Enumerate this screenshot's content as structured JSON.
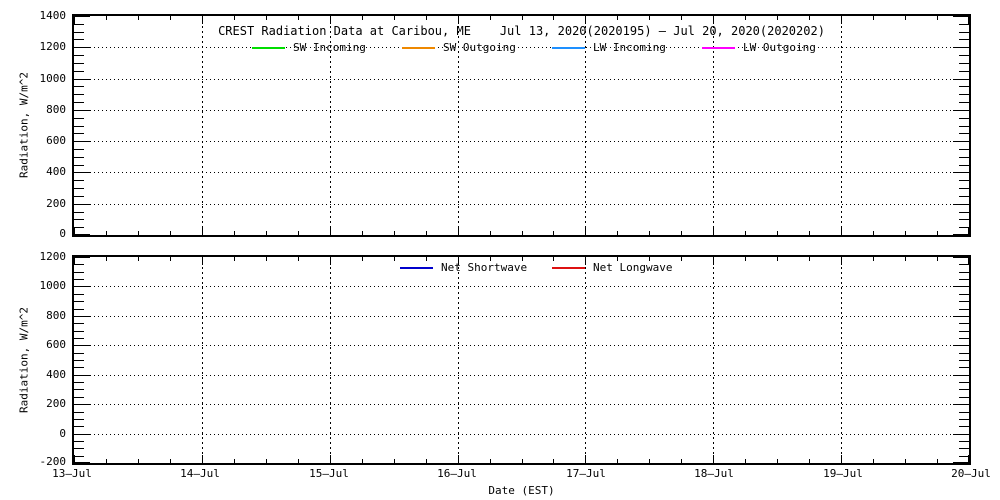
{
  "figure": {
    "background": "#ffffff",
    "foreground": "#000000"
  },
  "chart_data": [
    {
      "type": "line",
      "title": "CREST Radiation Data at Caribou, ME    Jul 13, 2020(2020195) – Jul 20, 2020(2020202)",
      "ylabel": "Radiation, W/m^2",
      "ylim": [
        0,
        1400
      ],
      "ytick_interval": 200,
      "yticks": [
        0,
        200,
        400,
        600,
        800,
        1000,
        1200,
        1400
      ],
      "x_tick_labels": [
        "13–Jul",
        "14–Jul",
        "15–Jul",
        "16–Jul",
        "17–Jul",
        "18–Jul",
        "19–Jul",
        "20–Jul"
      ],
      "grid": "dotted",
      "legend_position": "inside-top",
      "series": [
        {
          "name": "SW Incoming",
          "color": "#00dd00",
          "values": []
        },
        {
          "name": "SW Outgoing",
          "color": "#ee8800",
          "values": []
        },
        {
          "name": "LW Incoming",
          "color": "#1e90ff",
          "values": []
        },
        {
          "name": "LW Outgoing",
          "color": "#ff00ff",
          "values": []
        }
      ]
    },
    {
      "type": "line",
      "title": "",
      "xlabel": "Date (EST)",
      "ylabel": "Radiation, W/m^2",
      "ylim": [
        -200,
        1200
      ],
      "ytick_interval": 200,
      "yticks": [
        -200,
        0,
        200,
        400,
        600,
        800,
        1000,
        1200
      ],
      "x_tick_labels": [
        "13–Jul",
        "14–Jul",
        "15–Jul",
        "16–Jul",
        "17–Jul",
        "18–Jul",
        "19–Jul",
        "20–Jul"
      ],
      "grid": "dotted",
      "legend_position": "inside-top",
      "series": [
        {
          "name": "Net Shortwave",
          "color": "#0000cc",
          "values": []
        },
        {
          "name": "Net Longwave",
          "color": "#dd1111",
          "values": []
        }
      ]
    }
  ]
}
